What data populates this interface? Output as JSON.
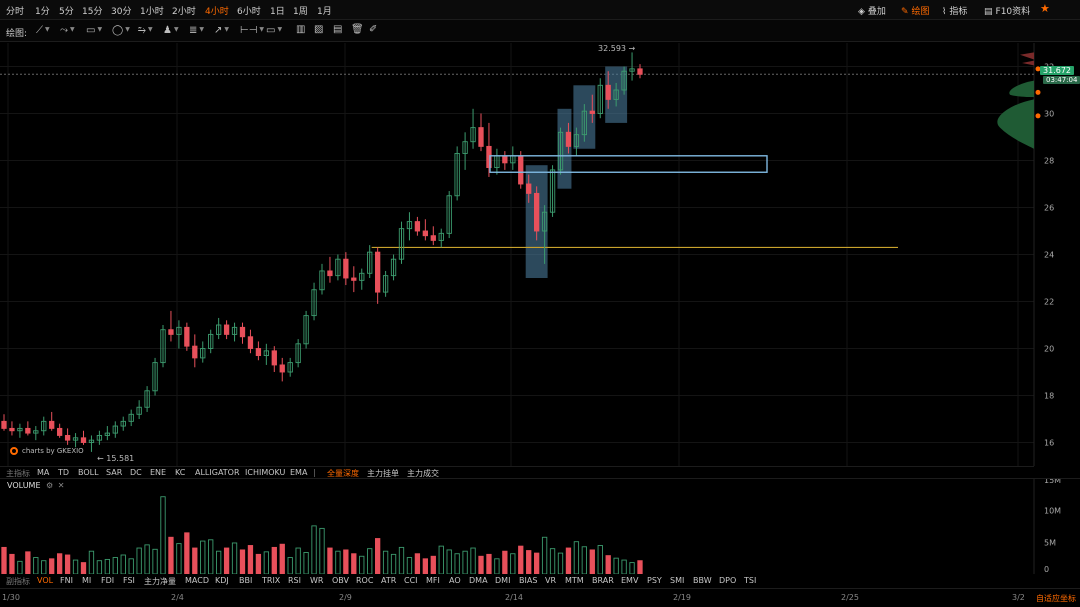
{
  "timeframes": [
    "分时",
    "1分",
    "5分",
    "15分",
    "30分",
    "1小时",
    "2小时",
    "4小时",
    "6小时",
    "1日",
    "1周",
    "1月"
  ],
  "active_timeframe": "4小时",
  "top_right": {
    "overlay_label": "叠加",
    "draw_label": "绘图",
    "indicator_label": "指标",
    "f10_label": "F10资料"
  },
  "drawbar": {
    "label": "绘图:"
  },
  "price_axis": {
    "ticks": [
      "32",
      "30",
      "28",
      "26",
      "24",
      "22",
      "20",
      "18",
      "16"
    ],
    "current_price": "31.672",
    "countdown": "03:47:04",
    "high_label": "32.593",
    "low_label": "15.581"
  },
  "watermark": "charts by GKEXIO",
  "main_indicators": [
    "主指标",
    "MA",
    "TD",
    "BOLL",
    "SAR",
    "DC",
    "ENE",
    "KC",
    "ALLIGATOR",
    "ICHIMOKU",
    "EMA",
    "|",
    "全量深度",
    "主力挂单",
    "主力成交"
  ],
  "main_indicator_active": "全量深度",
  "volume": {
    "title": "VOLUME",
    "ticks": [
      "15M",
      "10M",
      "5M",
      "0"
    ]
  },
  "sub_indicators": [
    "副指标",
    "VOL",
    "FNI",
    "MI",
    "FDI",
    "FSI",
    "主力净量",
    "MACD",
    "KDJ",
    "BBI",
    "TRIX",
    "RSI",
    "WR",
    "OBV",
    "ROC",
    "ATR",
    "CCI",
    "MFI",
    "AO",
    "DMA",
    "DMI",
    "BIAS",
    "VR",
    "MTM",
    "BRAR",
    "EMV",
    "PSY",
    "SMI",
    "BBW",
    "DPO",
    "TSI"
  ],
  "sub_indicator_active": "VOL",
  "dates": [
    "1/30",
    "2/4",
    "2/9",
    "2/14",
    "2/19",
    "2/25",
    "3/2"
  ],
  "auto_axis_label": "自适应坐标",
  "colors": {
    "up": "#3c9b6e",
    "down": "#e8505b",
    "accent": "#ff6a00",
    "hline": "#c8a22c",
    "rect_blue": "#7fb8e0",
    "box_fill": "#4a7a9a",
    "badge_green": "#26a269"
  },
  "chart_data": {
    "type": "candlestick",
    "ylim": [
      15,
      33
    ],
    "horizontal_line": 24.3,
    "candles": [
      {
        "o": 16.9,
        "h": 17.2,
        "l": 16.5,
        "c": 16.6
      },
      {
        "o": 16.6,
        "h": 16.9,
        "l": 16.3,
        "c": 16.5
      },
      {
        "o": 16.5,
        "h": 16.8,
        "l": 16.2,
        "c": 16.6
      },
      {
        "o": 16.6,
        "h": 16.9,
        "l": 16.3,
        "c": 16.4
      },
      {
        "o": 16.4,
        "h": 16.7,
        "l": 16.1,
        "c": 16.5
      },
      {
        "o": 16.5,
        "h": 17.1,
        "l": 16.3,
        "c": 16.9
      },
      {
        "o": 16.9,
        "h": 17.3,
        "l": 16.5,
        "c": 16.6
      },
      {
        "o": 16.6,
        "h": 16.8,
        "l": 16.2,
        "c": 16.3
      },
      {
        "o": 16.3,
        "h": 16.6,
        "l": 15.9,
        "c": 16.1
      },
      {
        "o": 16.1,
        "h": 16.4,
        "l": 15.8,
        "c": 16.2
      },
      {
        "o": 16.2,
        "h": 16.5,
        "l": 15.9,
        "c": 16.0
      },
      {
        "o": 16.0,
        "h": 16.3,
        "l": 15.6,
        "c": 16.1
      },
      {
        "o": 16.1,
        "h": 16.5,
        "l": 15.9,
        "c": 16.3
      },
      {
        "o": 16.3,
        "h": 16.7,
        "l": 16.1,
        "c": 16.4
      },
      {
        "o": 16.4,
        "h": 16.9,
        "l": 16.2,
        "c": 16.7
      },
      {
        "o": 16.7,
        "h": 17.1,
        "l": 16.5,
        "c": 16.9
      },
      {
        "o": 16.9,
        "h": 17.4,
        "l": 16.7,
        "c": 17.2
      },
      {
        "o": 17.2,
        "h": 17.8,
        "l": 17.0,
        "c": 17.5
      },
      {
        "o": 17.5,
        "h": 18.4,
        "l": 17.3,
        "c": 18.2
      },
      {
        "o": 18.2,
        "h": 19.6,
        "l": 18.0,
        "c": 19.4
      },
      {
        "o": 19.4,
        "h": 21.0,
        "l": 19.2,
        "c": 20.8
      },
      {
        "o": 20.8,
        "h": 21.6,
        "l": 20.3,
        "c": 20.6
      },
      {
        "o": 20.6,
        "h": 21.2,
        "l": 20.0,
        "c": 20.9
      },
      {
        "o": 20.9,
        "h": 21.1,
        "l": 19.9,
        "c": 20.1
      },
      {
        "o": 20.1,
        "h": 20.6,
        "l": 19.2,
        "c": 19.6
      },
      {
        "o": 19.6,
        "h": 20.3,
        "l": 19.4,
        "c": 20.0
      },
      {
        "o": 20.0,
        "h": 20.8,
        "l": 19.8,
        "c": 20.6
      },
      {
        "o": 20.6,
        "h": 21.3,
        "l": 20.4,
        "c": 21.0
      },
      {
        "o": 21.0,
        "h": 21.2,
        "l": 20.4,
        "c": 20.6
      },
      {
        "o": 20.6,
        "h": 21.1,
        "l": 20.3,
        "c": 20.9
      },
      {
        "o": 20.9,
        "h": 21.1,
        "l": 20.2,
        "c": 20.5
      },
      {
        "o": 20.5,
        "h": 20.8,
        "l": 19.8,
        "c": 20.0
      },
      {
        "o": 20.0,
        "h": 20.3,
        "l": 19.5,
        "c": 19.7
      },
      {
        "o": 19.7,
        "h": 20.2,
        "l": 19.3,
        "c": 19.9
      },
      {
        "o": 19.9,
        "h": 20.1,
        "l": 19.0,
        "c": 19.3
      },
      {
        "o": 19.3,
        "h": 19.6,
        "l": 18.6,
        "c": 19.0
      },
      {
        "o": 19.0,
        "h": 19.6,
        "l": 18.8,
        "c": 19.4
      },
      {
        "o": 19.4,
        "h": 20.4,
        "l": 19.2,
        "c": 20.2
      },
      {
        "o": 20.2,
        "h": 21.6,
        "l": 20.0,
        "c": 21.4
      },
      {
        "o": 21.4,
        "h": 22.8,
        "l": 21.2,
        "c": 22.5
      },
      {
        "o": 22.5,
        "h": 23.6,
        "l": 22.3,
        "c": 23.3
      },
      {
        "o": 23.3,
        "h": 23.9,
        "l": 22.8,
        "c": 23.1
      },
      {
        "o": 23.1,
        "h": 24.0,
        "l": 22.9,
        "c": 23.8
      },
      {
        "o": 23.8,
        "h": 24.1,
        "l": 22.7,
        "c": 23.0
      },
      {
        "o": 23.0,
        "h": 23.5,
        "l": 22.4,
        "c": 22.9
      },
      {
        "o": 22.9,
        "h": 23.4,
        "l": 22.5,
        "c": 23.2
      },
      {
        "o": 23.2,
        "h": 24.4,
        "l": 23.0,
        "c": 24.1
      },
      {
        "o": 24.1,
        "h": 24.3,
        "l": 21.9,
        "c": 22.4
      },
      {
        "o": 22.4,
        "h": 23.3,
        "l": 22.2,
        "c": 23.1
      },
      {
        "o": 23.1,
        "h": 24.0,
        "l": 22.9,
        "c": 23.8
      },
      {
        "o": 23.8,
        "h": 25.4,
        "l": 23.6,
        "c": 25.1
      },
      {
        "o": 25.1,
        "h": 25.8,
        "l": 24.6,
        "c": 25.4
      },
      {
        "o": 25.4,
        "h": 25.6,
        "l": 24.8,
        "c": 25.0
      },
      {
        "o": 25.0,
        "h": 25.5,
        "l": 24.6,
        "c": 24.8
      },
      {
        "o": 24.8,
        "h": 25.2,
        "l": 24.4,
        "c": 24.6
      },
      {
        "o": 24.6,
        "h": 25.1,
        "l": 24.3,
        "c": 24.9
      },
      {
        "o": 24.9,
        "h": 26.7,
        "l": 24.7,
        "c": 26.5
      },
      {
        "o": 26.5,
        "h": 28.6,
        "l": 26.3,
        "c": 28.3
      },
      {
        "o": 28.3,
        "h": 29.2,
        "l": 27.6,
        "c": 28.8
      },
      {
        "o": 28.8,
        "h": 30.2,
        "l": 28.5,
        "c": 29.4
      },
      {
        "o": 29.4,
        "h": 30.0,
        "l": 28.4,
        "c": 28.6
      },
      {
        "o": 28.6,
        "h": 29.6,
        "l": 27.3,
        "c": 27.7
      },
      {
        "o": 27.7,
        "h": 28.5,
        "l": 27.4,
        "c": 28.2
      },
      {
        "o": 28.2,
        "h": 28.4,
        "l": 27.6,
        "c": 27.9
      },
      {
        "o": 27.9,
        "h": 28.6,
        "l": 27.6,
        "c": 28.2
      },
      {
        "o": 28.2,
        "h": 28.4,
        "l": 26.8,
        "c": 27.0
      },
      {
        "o": 27.0,
        "h": 27.4,
        "l": 26.2,
        "c": 26.6
      },
      {
        "o": 26.6,
        "h": 26.9,
        "l": 24.6,
        "c": 25.0
      },
      {
        "o": 25.0,
        "h": 26.1,
        "l": 23.6,
        "c": 25.8
      },
      {
        "o": 25.8,
        "h": 27.8,
        "l": 25.6,
        "c": 27.6
      },
      {
        "o": 27.6,
        "h": 29.4,
        "l": 27.4,
        "c": 29.2
      },
      {
        "o": 29.2,
        "h": 29.6,
        "l": 28.3,
        "c": 28.6
      },
      {
        "o": 28.6,
        "h": 29.4,
        "l": 28.2,
        "c": 29.1
      },
      {
        "o": 29.1,
        "h": 30.4,
        "l": 28.8,
        "c": 30.1
      },
      {
        "o": 30.1,
        "h": 30.8,
        "l": 29.6,
        "c": 30.0
      },
      {
        "o": 30.0,
        "h": 31.5,
        "l": 29.8,
        "c": 31.2
      },
      {
        "o": 31.2,
        "h": 31.8,
        "l": 30.2,
        "c": 30.6
      },
      {
        "o": 30.6,
        "h": 31.3,
        "l": 30.3,
        "c": 31.0
      },
      {
        "o": 31.0,
        "h": 32.0,
        "l": 30.8,
        "c": 31.8
      },
      {
        "o": 31.8,
        "h": 32.6,
        "l": 31.4,
        "c": 31.9
      },
      {
        "o": 31.9,
        "h": 32.1,
        "l": 31.5,
        "c": 31.67
      }
    ],
    "volume": [
      4.2,
      3.1,
      2.0,
      3.5,
      2.6,
      2.1,
      2.4,
      3.2,
      3.0,
      2.2,
      1.8,
      3.6,
      2.1,
      2.3,
      2.6,
      3.0,
      2.4,
      4.1,
      4.6,
      3.9,
      12.2,
      5.8,
      4.8,
      6.5,
      4.1,
      5.2,
      5.4,
      3.6,
      4.1,
      4.9,
      3.8,
      4.5,
      3.1,
      3.5,
      4.2,
      4.7,
      2.6,
      4.1,
      3.4,
      7.6,
      7.2,
      4.1,
      3.6,
      3.8,
      3.2,
      2.8,
      4.0,
      5.6,
      3.6,
      3.1,
      4.2,
      2.6,
      3.2,
      2.4,
      2.8,
      4.4,
      3.8,
      3.2,
      3.6,
      4.1,
      2.8,
      3.1,
      2.4,
      3.6,
      3.2,
      4.4,
      3.7,
      3.3,
      5.8,
      4.0,
      3.3,
      4.1,
      5.1,
      4.3,
      3.8,
      4.5,
      2.9,
      2.5,
      2.2,
      1.8,
      2.1
    ]
  }
}
